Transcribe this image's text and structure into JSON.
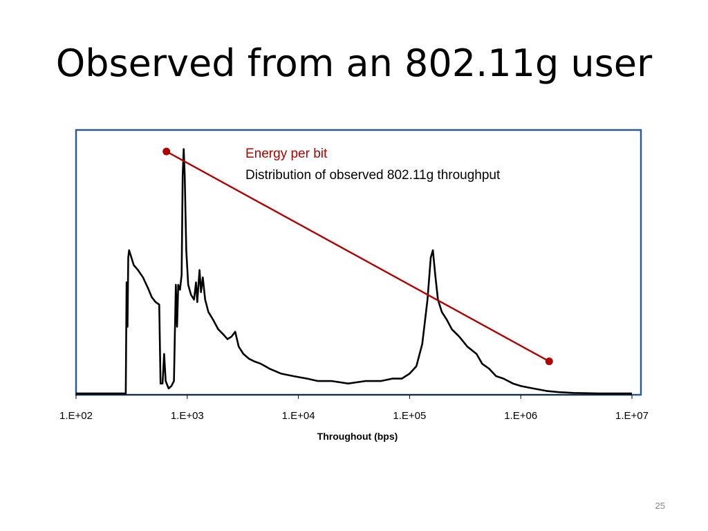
{
  "slide": {
    "title": "Observed from an 802.11g user",
    "page_number": "25"
  },
  "colors": {
    "frame": "#2F5B8C",
    "energy_line": "#B00000",
    "distribution_line": "#000000",
    "legend_energy": "#B00000",
    "legend_distribution": "#000000"
  },
  "chart_data": {
    "type": "line",
    "title": "",
    "xlabel": "Throughout (bps)",
    "ylabel": "",
    "x_scale": "log",
    "xlim": [
      100,
      10000000
    ],
    "x_ticks": [
      "1.E+02",
      "1.E+03",
      "1.E+04",
      "1.E+05",
      "1.E+06",
      "1.E+07"
    ],
    "x_tick_values": [
      100,
      1000,
      10000,
      100000,
      1000000,
      10000000
    ],
    "ylim": [
      0,
      1
    ],
    "grid": false,
    "legend": {
      "placement": "top-center",
      "entries": [
        "Energy per bit",
        "Distribution of observed 802.11g throughput"
      ]
    },
    "series": [
      {
        "name": "Energy per bit",
        "markers": true,
        "points": [
          [
            650,
            0.98
          ],
          [
            1800000,
            0.13
          ]
        ]
      },
      {
        "name": "Distribution of observed 802.11g throughput",
        "markers": false,
        "points": [
          [
            100,
            0
          ],
          [
            280,
            0
          ],
          [
            285,
            0.45
          ],
          [
            290,
            0.27
          ],
          [
            295,
            0.55
          ],
          [
            300,
            0.58
          ],
          [
            310,
            0.56
          ],
          [
            330,
            0.52
          ],
          [
            360,
            0.5
          ],
          [
            400,
            0.47
          ],
          [
            440,
            0.43
          ],
          [
            480,
            0.39
          ],
          [
            520,
            0.37
          ],
          [
            560,
            0.36
          ],
          [
            575,
            0.04
          ],
          [
            600,
            0.04
          ],
          [
            620,
            0.16
          ],
          [
            640,
            0.05
          ],
          [
            680,
            0.02
          ],
          [
            720,
            0.03
          ],
          [
            760,
            0.05
          ],
          [
            790,
            0.44
          ],
          [
            810,
            0.27
          ],
          [
            830,
            0.44
          ],
          [
            860,
            0.42
          ],
          [
            890,
            0.48
          ],
          [
            910,
            0.88
          ],
          [
            930,
            0.99
          ],
          [
            950,
            0.88
          ],
          [
            980,
            0.58
          ],
          [
            1020,
            0.44
          ],
          [
            1080,
            0.4
          ],
          [
            1150,
            0.38
          ],
          [
            1200,
            0.45
          ],
          [
            1230,
            0.37
          ],
          [
            1290,
            0.5
          ],
          [
            1330,
            0.41
          ],
          [
            1380,
            0.47
          ],
          [
            1450,
            0.38
          ],
          [
            1550,
            0.33
          ],
          [
            1700,
            0.3
          ],
          [
            1900,
            0.26
          ],
          [
            2100,
            0.24
          ],
          [
            2300,
            0.22
          ],
          [
            2500,
            0.23
          ],
          [
            2700,
            0.25
          ],
          [
            2900,
            0.19
          ],
          [
            3200,
            0.16
          ],
          [
            3600,
            0.14
          ],
          [
            4000,
            0.13
          ],
          [
            4600,
            0.12
          ],
          [
            5500,
            0.1
          ],
          [
            7000,
            0.08
          ],
          [
            9000,
            0.07
          ],
          [
            12000,
            0.06
          ],
          [
            15000,
            0.05
          ],
          [
            20000,
            0.05
          ],
          [
            28000,
            0.04
          ],
          [
            40000,
            0.05
          ],
          [
            55000,
            0.05
          ],
          [
            70000,
            0.06
          ],
          [
            85000,
            0.06
          ],
          [
            100000,
            0.08
          ],
          [
            115000,
            0.11
          ],
          [
            130000,
            0.2
          ],
          [
            145000,
            0.38
          ],
          [
            155000,
            0.55
          ],
          [
            162000,
            0.58
          ],
          [
            170000,
            0.48
          ],
          [
            180000,
            0.38
          ],
          [
            195000,
            0.33
          ],
          [
            215000,
            0.3
          ],
          [
            240000,
            0.26
          ],
          [
            280000,
            0.23
          ],
          [
            330000,
            0.19
          ],
          [
            400000,
            0.16
          ],
          [
            450000,
            0.12
          ],
          [
            520000,
            0.1
          ],
          [
            600000,
            0.07
          ],
          [
            700000,
            0.06
          ],
          [
            850000,
            0.04
          ],
          [
            1000000,
            0.03
          ],
          [
            1300000,
            0.02
          ],
          [
            1700000,
            0.01
          ],
          [
            2200000,
            0.005
          ],
          [
            3000000,
            0.002
          ],
          [
            5000000,
            0
          ],
          [
            10000000,
            0
          ]
        ]
      }
    ]
  }
}
